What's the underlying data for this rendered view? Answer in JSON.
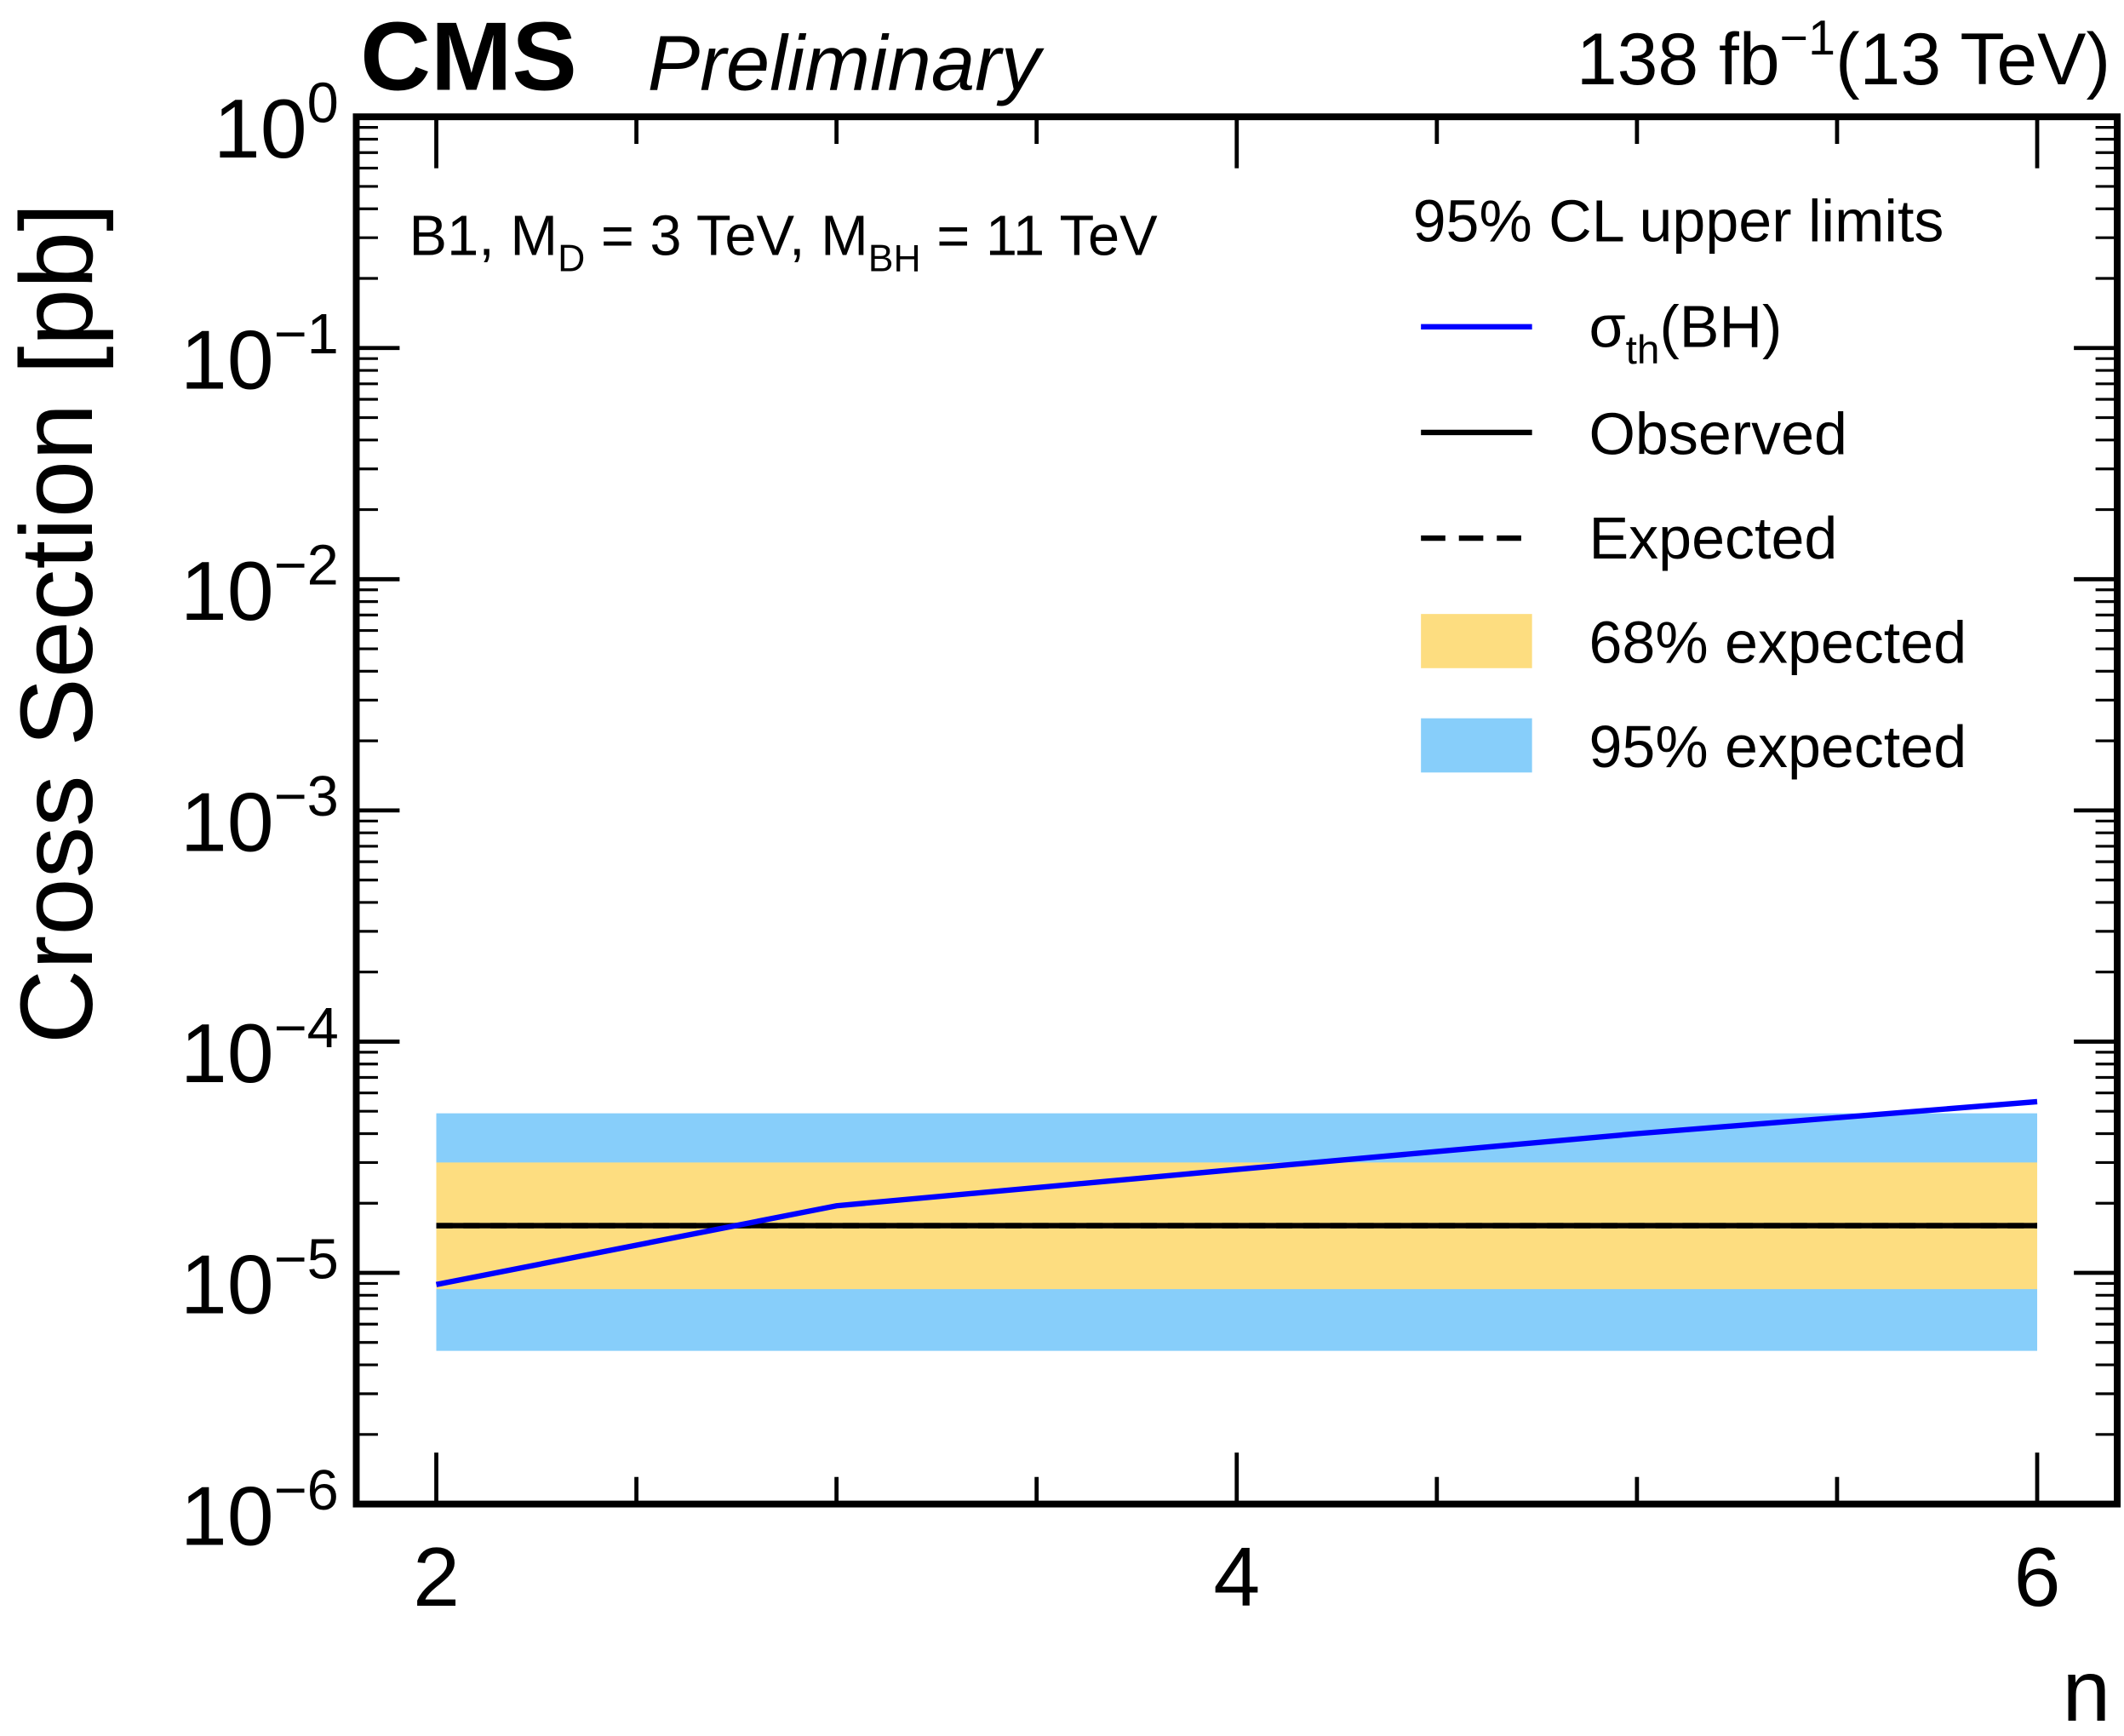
{
  "header": {
    "cms": "CMS",
    "preliminary": "Preliminary",
    "lumi": "138 fb",
    "lumi_exp": "−1",
    "energy": "(13 TeV)"
  },
  "annotation": {
    "prefix": "B1, M",
    "sub1": "D",
    "mid": " = 3 TeV, M",
    "sub2": "BH",
    "suffix": " = 11 TeV"
  },
  "legend": {
    "title": "95% CL upper limits",
    "theory_main": "σ",
    "theory_sub": "th",
    "theory_rest": "(BH)",
    "observed": "Observed",
    "expected": "Expected",
    "band68": "68% expected",
    "band95": "95% expected"
  },
  "chart_data": {
    "type": "line",
    "xlabel": "n",
    "ylabel": "Cross Section [pb]",
    "xlim": [
      1.8,
      6.2
    ],
    "ylim": [
      1e-06,
      1
    ],
    "yscale": "log",
    "x_ticks": [
      "2",
      "4",
      "6"
    ],
    "y_ticks": [
      {
        "base": "10",
        "exp": "0"
      },
      {
        "base": "10",
        "exp": "−1"
      },
      {
        "base": "10",
        "exp": "−2"
      },
      {
        "base": "10",
        "exp": "−3"
      },
      {
        "base": "10",
        "exp": "−4"
      },
      {
        "base": "10",
        "exp": "−5"
      },
      {
        "base": "10",
        "exp": "−6"
      }
    ],
    "legend_position": "top-right",
    "grid": false,
    "x": [
      2,
      3,
      4,
      5,
      6
    ],
    "series": [
      {
        "name": "σth(BH)",
        "color": "#0000ff",
        "values": [
          8.9e-06,
          1.95e-05,
          2.8e-05,
          4e-05,
          5.5e-05
        ]
      },
      {
        "name": "Observed",
        "color": "#000000",
        "values": [
          1.6e-05,
          1.6e-05,
          1.6e-05,
          1.6e-05,
          1.6e-05
        ]
      },
      {
        "name": "Expected",
        "color": "#000000",
        "style": "dashed",
        "values": [
          1.6e-05,
          1.6e-05,
          1.6e-05,
          1.6e-05,
          1.6e-05
        ]
      }
    ],
    "bands": [
      {
        "name": "95% expected",
        "color": "#87cefa",
        "low": [
          4.6e-06,
          4.6e-06,
          4.6e-06,
          4.6e-06,
          4.6e-06
        ],
        "high": [
          4.9e-05,
          4.9e-05,
          4.9e-05,
          4.9e-05,
          4.9e-05
        ]
      },
      {
        "name": "68% expected",
        "color": "#fddd80",
        "low": [
          8.5e-06,
          8.5e-06,
          8.5e-06,
          8.5e-06,
          8.5e-06
        ],
        "high": [
          3e-05,
          3e-05,
          3e-05,
          3e-05,
          3e-05
        ]
      }
    ]
  }
}
